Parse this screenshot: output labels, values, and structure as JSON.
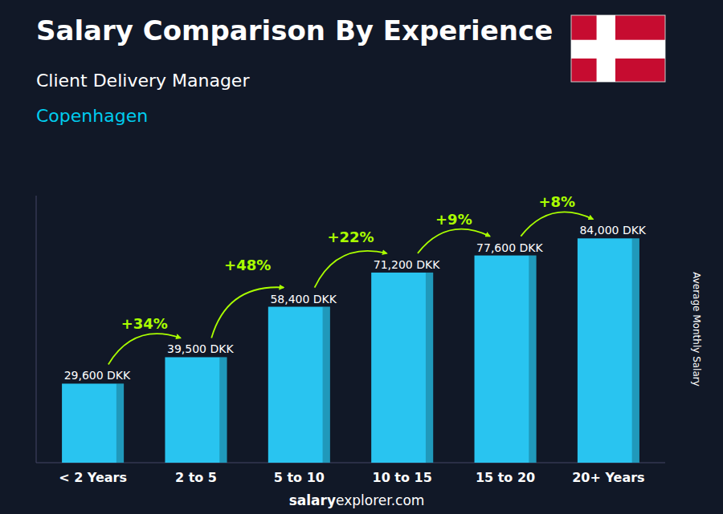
{
  "chart_data": {
    "type": "bar",
    "title": "Salary Comparison By Experience",
    "subtitle": "Client Delivery Manager",
    "city": "Copenhagen",
    "ylabel": "Average Monthly Salary",
    "footer": [
      "salary",
      "explorer.com"
    ],
    "categories": [
      "< 2 Years",
      "2 to 5",
      "5 to 10",
      "10 to 15",
      "15 to 20",
      "20+ Years"
    ],
    "values": [
      29600,
      39500,
      58400,
      71200,
      77600,
      84000
    ],
    "value_labels": [
      "29,600 DKK",
      "39,500 DKK",
      "58,400 DKK",
      "71,200 DKK",
      "77,600 DKK",
      "84,000 DKK"
    ],
    "annotations": [
      "+34%",
      "+48%",
      "+22%",
      "+9%",
      "+8%"
    ],
    "color": "#29c4f0",
    "ylim": [
      0,
      100000
    ],
    "yticks": [],
    "grid": false,
    "data_labels": true,
    "tick_labels": "x"
  }
}
